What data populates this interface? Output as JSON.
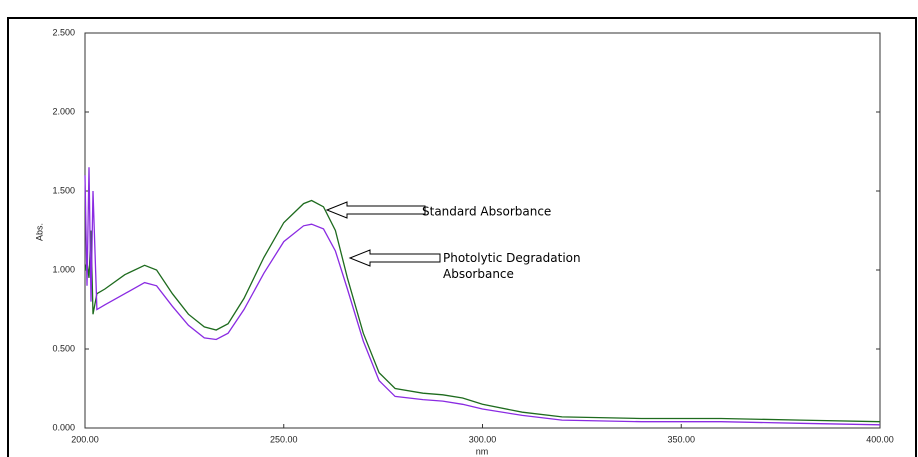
{
  "chart_data": {
    "type": "line",
    "x_label": "nm",
    "y_label": "Abs.",
    "x": [
      200,
      200.5,
      201,
      201.5,
      202,
      203,
      205,
      210,
      215,
      218,
      222,
      226,
      230,
      233,
      236,
      240,
      245,
      250,
      255,
      257,
      260,
      263,
      266,
      270,
      274,
      278,
      285,
      290,
      295,
      300,
      310,
      320,
      340,
      360,
      380,
      400
    ],
    "series": [
      {
        "name": "Standard Absorbance",
        "color": "#1e6b1e",
        "values": [
          1.0,
          1.05,
          0.95,
          1.25,
          0.72,
          0.85,
          0.88,
          0.97,
          1.03,
          1.0,
          0.85,
          0.72,
          0.64,
          0.62,
          0.66,
          0.82,
          1.08,
          1.3,
          1.42,
          1.44,
          1.4,
          1.25,
          0.95,
          0.6,
          0.35,
          0.25,
          0.22,
          0.21,
          0.19,
          0.15,
          0.1,
          0.07,
          0.06,
          0.06,
          0.05,
          0.04
        ]
      },
      {
        "name": "Photolytic Degradation Absorbance",
        "color": "#8a2be2",
        "values": [
          1.6,
          0.9,
          1.65,
          0.8,
          1.5,
          0.75,
          0.78,
          0.85,
          0.92,
          0.9,
          0.77,
          0.65,
          0.57,
          0.56,
          0.6,
          0.75,
          0.98,
          1.18,
          1.28,
          1.29,
          1.26,
          1.12,
          0.88,
          0.55,
          0.3,
          0.2,
          0.18,
          0.17,
          0.15,
          0.12,
          0.08,
          0.05,
          0.04,
          0.04,
          0.03,
          0.02
        ]
      }
    ],
    "xlim": [
      200,
      400
    ],
    "xticks": [
      {
        "value": 200,
        "label": "200.00"
      },
      {
        "value": 250,
        "label": "250.00"
      },
      {
        "value": 300,
        "label": "300.00"
      },
      {
        "value": 350,
        "label": "350.00"
      },
      {
        "value": 400,
        "label": "400.00"
      }
    ],
    "ylim": [
      0,
      2.5
    ],
    "yticks": [
      {
        "value": 0,
        "label": "0.000"
      },
      {
        "value": 0.5,
        "label": "0.500"
      },
      {
        "value": 1,
        "label": "1.000"
      },
      {
        "value": 1.5,
        "label": "1.500"
      },
      {
        "value": 2,
        "label": "2.000"
      },
      {
        "value": 2.5,
        "label": "2.500"
      }
    ],
    "annotations": [
      "Standard Absorbance",
      "Photolytic Degradation Absorbance"
    ]
  }
}
